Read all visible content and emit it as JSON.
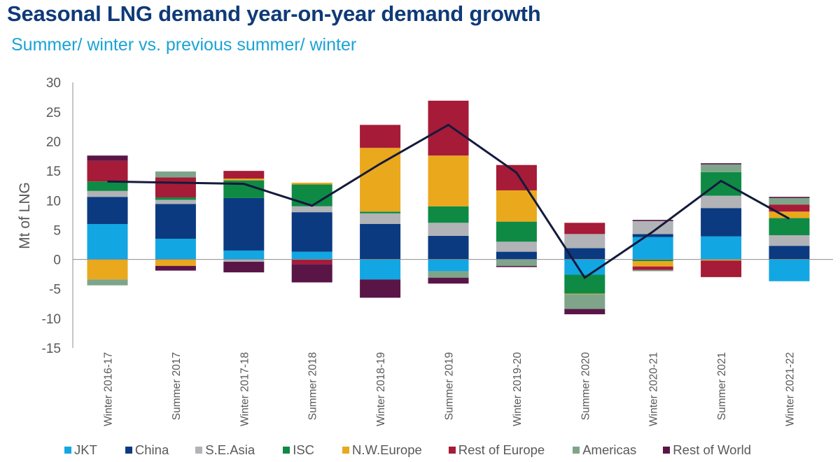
{
  "title": "Seasonal LNG demand year-on-year demand growth",
  "subtitle": "Summer/ winter vs. previous summer/ winter",
  "chart_data": {
    "type": "bar",
    "stacked": true,
    "title": "Seasonal LNG demand year-on-year demand growth",
    "subtitle": "Summer/ winter vs. previous summer/ winter",
    "xlabel": "",
    "ylabel": "Mt of LNG",
    "ylim": [
      -15,
      30
    ],
    "yticks": [
      30,
      25,
      20,
      15,
      10,
      5,
      0,
      -5,
      -10,
      -15
    ],
    "grid": false,
    "legend_position": "bottom",
    "categories": [
      "Winter 2016-17",
      "Summer 2017",
      "Winter 2017-18",
      "Summer 2018",
      "Winter 2018-19",
      "Summer 2019",
      "Winter 2019-20",
      "Summer 2020",
      "Winter 2020-21",
      "Summer 2021",
      "Winter 2021-22"
    ],
    "series": [
      {
        "name": "JKT",
        "color": "#12a6e3",
        "values": [
          6.0,
          3.5,
          1.5,
          1.3,
          -3.4,
          -2.0,
          0.0,
          -2.6,
          3.8,
          3.9,
          -3.7
        ]
      },
      {
        "name": "China",
        "color": "#0b3a80",
        "values": [
          4.6,
          5.9,
          8.9,
          6.7,
          6.0,
          4.0,
          1.3,
          1.9,
          0.5,
          4.8,
          2.3
        ]
      },
      {
        "name": "S.E.Asia",
        "color": "#b1b3b6",
        "values": [
          1.0,
          0.7,
          -0.4,
          1.0,
          1.8,
          2.2,
          1.7,
          2.4,
          2.2,
          2.1,
          1.8
        ]
      },
      {
        "name": "ISC",
        "color": "#0e8a45",
        "values": [
          1.6,
          0.4,
          3.0,
          3.7,
          0.3,
          2.8,
          3.4,
          -3.2,
          -0.3,
          4.0,
          2.9
        ]
      },
      {
        "name": "N.W.Europe",
        "color": "#eaa81d",
        "values": [
          -3.4,
          -1.1,
          0.3,
          0.3,
          10.8,
          8.6,
          5.3,
          -0.1,
          -0.9,
          -0.2,
          1.1
        ]
      },
      {
        "name": "Rest of Europe",
        "color": "#a61b37",
        "values": [
          3.5,
          3.4,
          1.3,
          -0.8,
          3.9,
          9.3,
          4.3,
          1.9,
          -0.6,
          -2.8,
          1.2
        ]
      },
      {
        "name": "Americas",
        "color": "#7ea58a",
        "values": [
          -1.0,
          1.0,
          0.0,
          0.0,
          0.0,
          -1.1,
          -1.1,
          -2.5,
          -0.2,
          1.3,
          1.1
        ]
      },
      {
        "name": "Rest of World",
        "color": "#5a1547",
        "values": [
          0.9,
          -0.8,
          -1.8,
          -3.1,
          -3.1,
          -1.0,
          -0.2,
          -0.9,
          0.2,
          0.2,
          0.2
        ]
      }
    ],
    "total_line": {
      "name": "Total",
      "color": "#141a3c",
      "values": [
        13.2,
        13.0,
        12.8,
        9.1,
        16.2,
        22.8,
        14.7,
        -3.1,
        4.7,
        13.3,
        6.9
      ]
    }
  },
  "legend": [
    {
      "label": "JKT",
      "color": "#12a6e3"
    },
    {
      "label": "China",
      "color": "#0b3a80"
    },
    {
      "label": "S.E.Asia",
      "color": "#b1b3b6"
    },
    {
      "label": "ISC",
      "color": "#0e8a45"
    },
    {
      "label": "N.W.Europe",
      "color": "#eaa81d"
    },
    {
      "label": "Rest of Europe",
      "color": "#a61b37"
    },
    {
      "label": "Americas",
      "color": "#7ea58a"
    },
    {
      "label": "Rest of World",
      "color": "#5a1547"
    }
  ]
}
